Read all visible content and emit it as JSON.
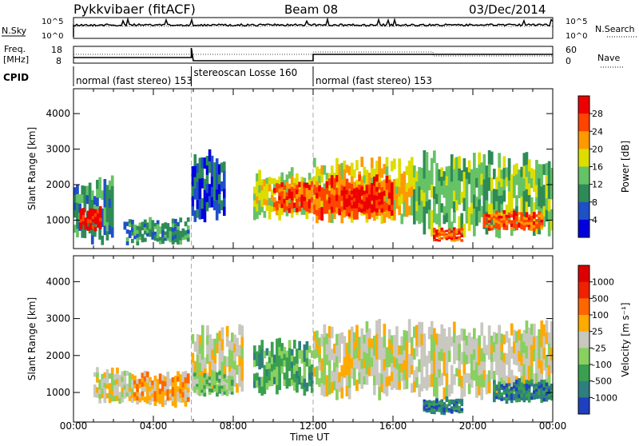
{
  "header": {
    "radar": "Pykkvibaer (fitACF)",
    "beam": "Beam 08",
    "date": "03/Dec/2014"
  },
  "noise_panel": {
    "left_label": "N.Sky",
    "right_label": "N.Search",
    "left_ticks": [
      "10^5",
      "10^0"
    ],
    "right_ticks": [
      "10^5",
      "10^0"
    ]
  },
  "freq_panel": {
    "left_label_1": "Freq.",
    "left_label_2": "[MHz]",
    "right_label": "Nave",
    "left_ticks": [
      "18",
      "8"
    ],
    "right_ticks": [
      "60",
      "0"
    ]
  },
  "cpid": {
    "label": "CPID",
    "segments": [
      {
        "text": "normal (fast stereo) 153",
        "start_hour": 0
      },
      {
        "text": "stereoscan Losse 160",
        "start_hour": 5.9
      },
      {
        "text": "normal (fast stereo) 153",
        "start_hour": 12
      }
    ]
  },
  "chart_data": [
    {
      "type": "heatmap",
      "ylabel": "Slant Range [km]",
      "xlabel": "Time UT",
      "x_ticks": [
        "00:00",
        "04:00",
        "08:00",
        "12:00",
        "16:00",
        "20:00",
        "00:00"
      ],
      "x_range_hours": [
        0,
        24
      ],
      "y_ticks": [
        1000,
        2000,
        3000,
        4000
      ],
      "y_range_km": [
        200,
        4700
      ],
      "colorbar": {
        "label": "Power [dB]",
        "ticks": [
          "4",
          "8",
          "12",
          "16",
          "20",
          "24",
          "28"
        ],
        "colors": [
          "#0000dd",
          "#1e50c8",
          "#2e8b57",
          "#66c266",
          "#dddd00",
          "#ff9900",
          "#ff4400",
          "#ee0000"
        ]
      },
      "regions": [
        {
          "start_hour": 0.0,
          "end_hour": 2.0,
          "min_km": 300,
          "max_km": 2300,
          "level": 2
        },
        {
          "start_hour": 0.3,
          "end_hour": 1.4,
          "min_km": 700,
          "max_km": 1400,
          "level": 7
        },
        {
          "start_hour": 2.5,
          "end_hour": 5.8,
          "min_km": 300,
          "max_km": 1100,
          "level": 2
        },
        {
          "start_hour": 5.9,
          "end_hour": 7.6,
          "min_km": 900,
          "max_km": 3000,
          "level": 1
        },
        {
          "start_hour": 9.0,
          "end_hour": 12.0,
          "min_km": 1000,
          "max_km": 2500,
          "level": 4
        },
        {
          "start_hour": 10.0,
          "end_hour": 12.0,
          "min_km": 1200,
          "max_km": 2100,
          "level": 6
        },
        {
          "start_hour": 12.0,
          "end_hour": 17.0,
          "min_km": 900,
          "max_km": 2800,
          "level": 4
        },
        {
          "start_hour": 12.0,
          "end_hour": 16.0,
          "min_km": 1000,
          "max_km": 2300,
          "level": 6
        },
        {
          "start_hour": 13.5,
          "end_hour": 15.5,
          "min_km": 1200,
          "max_km": 2000,
          "level": 7
        },
        {
          "start_hour": 17.0,
          "end_hour": 24.0,
          "min_km": 500,
          "max_km": 3000,
          "level": 3
        },
        {
          "start_hour": 18.0,
          "end_hour": 19.5,
          "min_km": 400,
          "max_km": 800,
          "level": 6
        },
        {
          "start_hour": 20.5,
          "end_hour": 23.5,
          "min_km": 700,
          "max_km": 1300,
          "level": 6
        }
      ]
    },
    {
      "type": "heatmap",
      "ylabel": "Slant Range [km]",
      "xlabel": "Time UT",
      "x_ticks": [
        "00:00",
        "04:00",
        "08:00",
        "12:00",
        "16:00",
        "20:00",
        "00:00"
      ],
      "x_range_hours": [
        0,
        24
      ],
      "y_ticks": [
        1000,
        2000,
        3000,
        4000
      ],
      "y_range_km": [
        200,
        4700
      ],
      "colorbar": {
        "label": "Velocity [m s⁻¹]",
        "ticks": [
          "1000",
          "500",
          "100",
          "25",
          "-25",
          "-100",
          "-500",
          "-1000"
        ],
        "colors": [
          "#1e40c0",
          "#2f7f7f",
          "#3aa050",
          "#88d060",
          "#c8c8c0",
          "#ffaa00",
          "#ff6600",
          "#ee2200",
          "#dd0000"
        ]
      },
      "regions": [
        {
          "start_hour": 1.0,
          "end_hour": 3.0,
          "min_km": 700,
          "max_km": 1700,
          "level": 4
        },
        {
          "start_hour": 3.0,
          "end_hour": 5.8,
          "min_km": 600,
          "max_km": 1600,
          "level": 5
        },
        {
          "start_hour": 5.9,
          "end_hour": 8.5,
          "min_km": 900,
          "max_km": 2900,
          "level": 4
        },
        {
          "start_hour": 6.0,
          "end_hour": 8.0,
          "min_km": 900,
          "max_km": 1600,
          "level": 3
        },
        {
          "start_hour": 9.0,
          "end_hour": 12.0,
          "min_km": 900,
          "max_km": 2500,
          "level": 2
        },
        {
          "start_hour": 12.0,
          "end_hour": 24.0,
          "min_km": 800,
          "max_km": 3000,
          "level": 4
        },
        {
          "start_hour": 17.5,
          "end_hour": 19.5,
          "min_km": 400,
          "max_km": 900,
          "level": 1
        },
        {
          "start_hour": 21.0,
          "end_hour": 24.0,
          "min_km": 700,
          "max_km": 1400,
          "level": 1
        }
      ]
    }
  ]
}
